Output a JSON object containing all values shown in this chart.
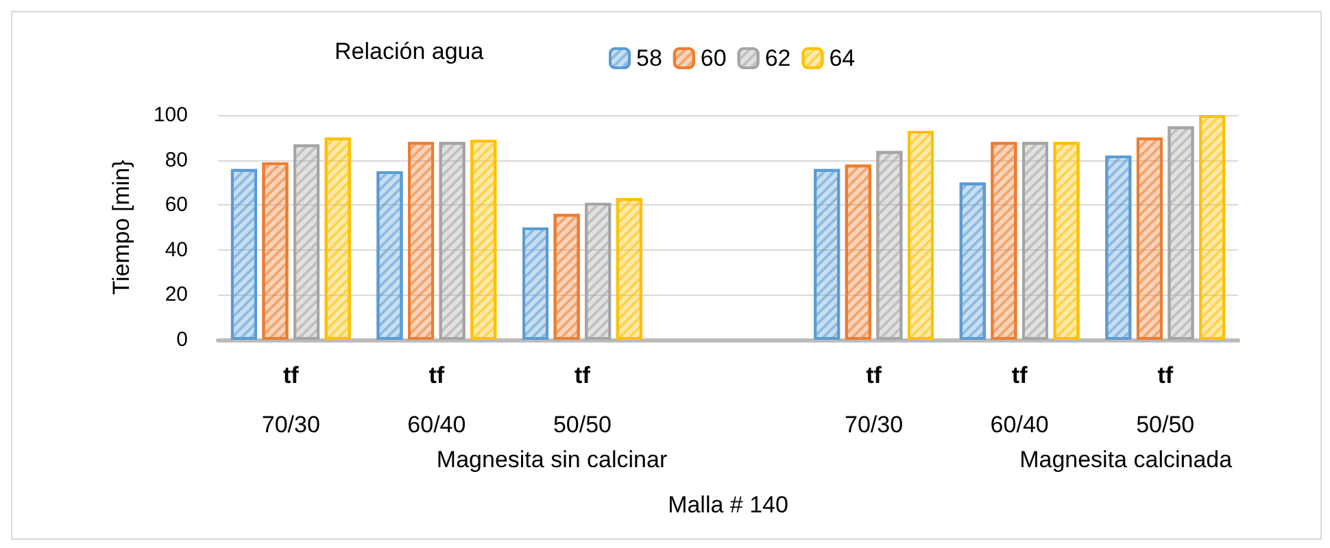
{
  "chart_data": {
    "type": "bar",
    "xlabel": "Malla # 140",
    "ylabel": "Tiempo [min}",
    "legend_title": "Relación agua",
    "categories": [
      "tf\n70/30",
      "tf\n60/40",
      "tf\n50/50",
      null,
      "tf\n70/30",
      "tf\n60/40",
      "tf\n50/50"
    ],
    "series": [
      {
        "name": "58",
        "color": "#5b9bd5",
        "values": [
          76,
          75,
          50,
          null,
          76,
          70,
          82
        ]
      },
      {
        "name": "60",
        "color": "#ed7d31",
        "values": [
          79,
          88,
          56,
          null,
          78,
          88,
          90
        ]
      },
      {
        "name": "62",
        "color": "#a5a5a5",
        "values": [
          87,
          88,
          61,
          null,
          84,
          88,
          95
        ]
      },
      {
        "name": "64",
        "color": "#ffc000",
        "values": [
          90,
          89,
          63,
          null,
          93,
          88,
          100
        ]
      }
    ],
    "annotations": [
      "Magnesita sin calcinar",
      "Magnesita calcinada"
    ],
    "ylim": [
      0,
      100
    ],
    "yticks": [
      0,
      20,
      40,
      60,
      80,
      100
    ],
    "grid": "y",
    "legend": "top"
  }
}
